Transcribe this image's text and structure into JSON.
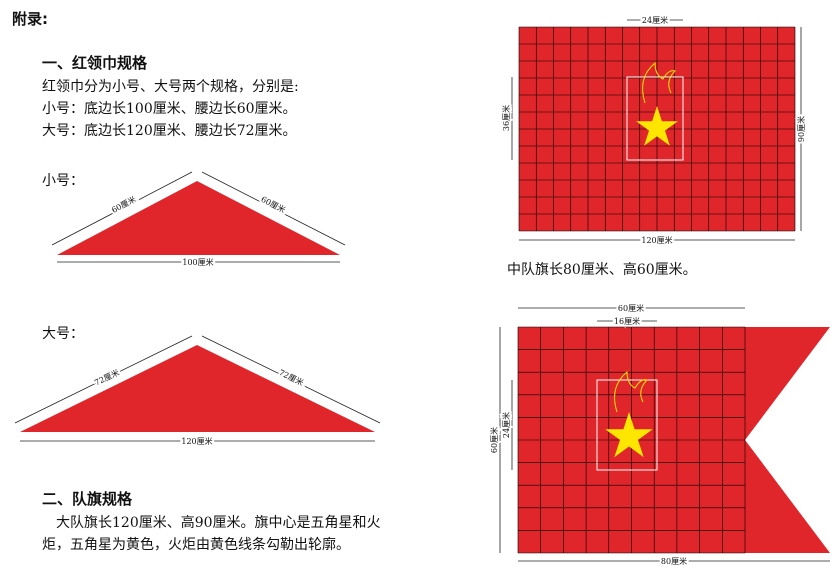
{
  "header": {
    "title": "附录:"
  },
  "scarf": {
    "heading": "一、红领巾规格",
    "intro": "红领巾分为小号、大号两个规格，分别是:",
    "small_spec": "小号：底边长100厘米、腰边长60厘米。",
    "large_spec": "大号：底边长120厘米、腰边长72厘米。",
    "small": {
      "label": "小号：",
      "left": "60厘米",
      "right": "60厘米",
      "base": "100厘米"
    },
    "large": {
      "label": "大号：",
      "left": "72厘米",
      "right": "72厘米",
      "base": "120厘米"
    }
  },
  "flags": {
    "heading": "二、队旗规格",
    "brigade_text": "大队旗长120厘米、高90厘米。旗中心是五角星和火炬，五角星为黄色，火炬由黄色线条勾勒出轮廓。",
    "brigade": {
      "inner_width": "24厘米",
      "inner_height": "36厘米",
      "height": "90厘米",
      "width": "120厘米"
    },
    "squadron_text": "中队旗长80厘米、高60厘米。",
    "squadron": {
      "top_width": "60厘米",
      "inner_width": "16厘米",
      "height": "60厘米",
      "inner_height": "24厘米",
      "width": "80厘米"
    }
  }
}
